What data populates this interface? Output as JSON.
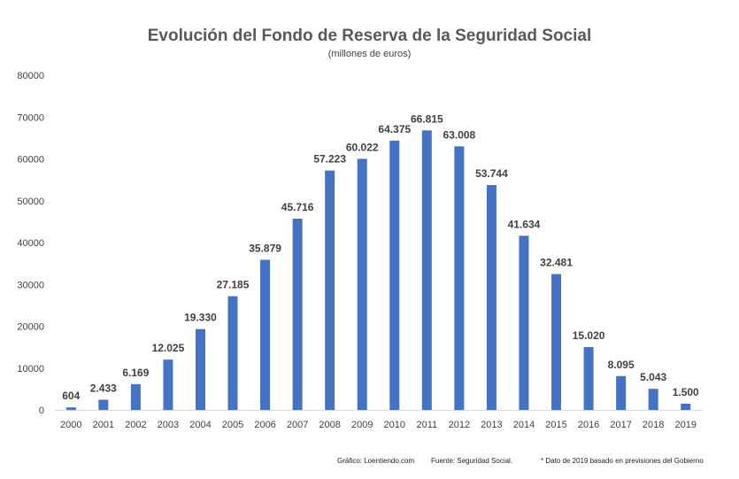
{
  "chart_data": {
    "type": "bar",
    "title": "Evolución del Fondo de Reserva de la Seguridad Social",
    "subtitle": "(millones de euros)",
    "xlabel": "",
    "ylabel": "",
    "ylim": [
      0,
      80000
    ],
    "yticks": [
      0,
      10000,
      20000,
      30000,
      40000,
      50000,
      60000,
      70000,
      80000
    ],
    "ytick_labels": [
      "0",
      "10000",
      "20000",
      "30000",
      "40000",
      "50000",
      "60000",
      "70000",
      "80000"
    ],
    "grid": false,
    "legend": "none",
    "categories": [
      "2000",
      "2001",
      "2002",
      "2003",
      "2004",
      "2005",
      "2006",
      "2007",
      "2008",
      "2009",
      "2010",
      "2011",
      "2012",
      "2013",
      "2014",
      "2015",
      "2016",
      "2017",
      "2018",
      "2019"
    ],
    "values": [
      604,
      2433,
      6169,
      12025,
      19330,
      27185,
      35879,
      45716,
      57223,
      60022,
      64375,
      66815,
      63008,
      53744,
      41634,
      32481,
      15020,
      8095,
      5043,
      1500
    ],
    "data_labels": [
      "604",
      "2.433",
      "6.169",
      "12.025",
      "19.330",
      "27.185",
      "35.879",
      "45.716",
      "57.223",
      "60.022",
      "64.375",
      "66.815",
      "63.008",
      "53.744",
      "41.634",
      "32.481",
      "15.020",
      "8.095",
      "5.043",
      "1.500"
    ],
    "bar_color": "#4472C4"
  },
  "footer": {
    "graphic_credit": "Gráfico: Loentiendo.com",
    "source": "Fuente: Seguridad Social.",
    "note": "* Dato de 2019 basado en previsiones del Gobierno"
  }
}
